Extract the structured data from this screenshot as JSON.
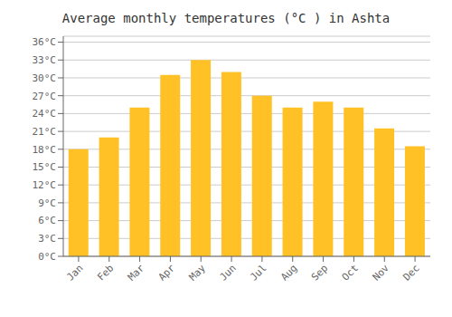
{
  "chart_data": {
    "type": "bar",
    "title": "Average monthly temperatures (°C ) in Ashta",
    "categories": [
      "Jan",
      "Feb",
      "Mar",
      "Apr",
      "May",
      "Jun",
      "Jul",
      "Aug",
      "Sep",
      "Oct",
      "Nov",
      "Dec"
    ],
    "values": [
      18,
      20,
      25,
      30.5,
      33,
      31,
      27,
      25,
      26,
      25,
      21.5,
      18.5
    ],
    "color": "#FFC125",
    "ylim": [
      0,
      37
    ],
    "yticks": [
      {
        "value": 0,
        "label": "0°C"
      },
      {
        "value": 3,
        "label": "3°C"
      },
      {
        "value": 6,
        "label": "6°C"
      },
      {
        "value": 9,
        "label": "9°C"
      },
      {
        "value": 12,
        "label": "12°C"
      },
      {
        "value": 15,
        "label": "15°C"
      },
      {
        "value": 18,
        "label": "18°C"
      },
      {
        "value": 21,
        "label": "21°C"
      },
      {
        "value": 24,
        "label": "24°C"
      },
      {
        "value": 27,
        "label": "27°C"
      },
      {
        "value": 30,
        "label": "30°C"
      },
      {
        "value": 33,
        "label": "33°C"
      },
      {
        "value": 36,
        "label": "36°C"
      }
    ],
    "grid": true
  }
}
